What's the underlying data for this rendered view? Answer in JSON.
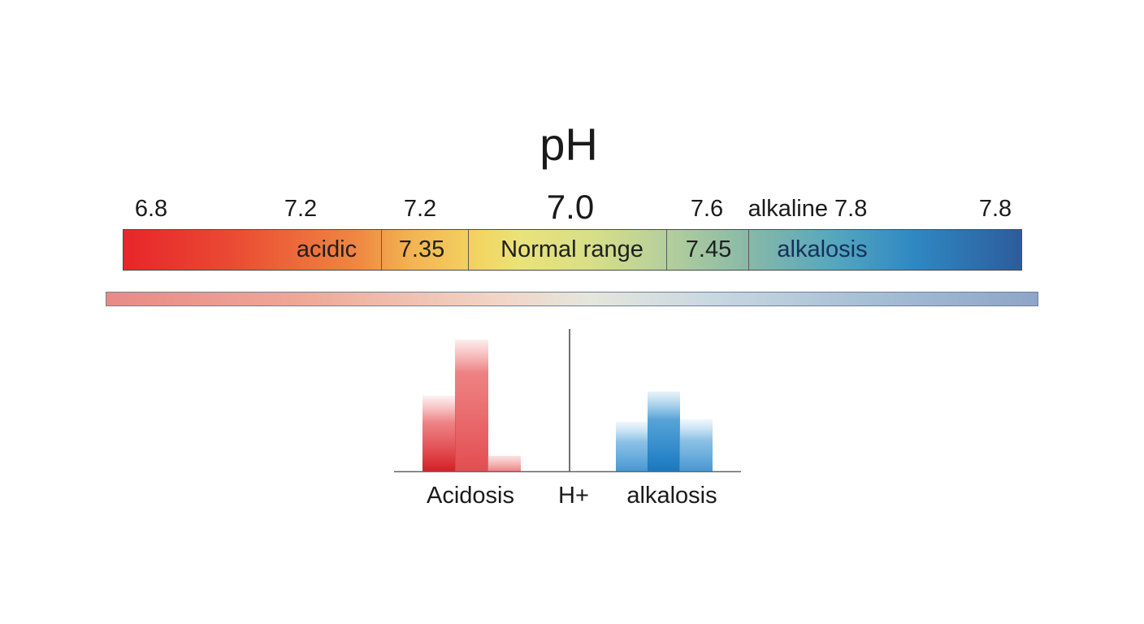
{
  "title": "pH",
  "scale": {
    "ticks": [
      "6.8",
      "7.2",
      "7.2",
      "7.0",
      "7.6",
      "alkaline 7.8",
      "7.8"
    ],
    "segments": [
      "acidic",
      "7.35",
      "Normal range",
      "7.45",
      "alkalosis"
    ]
  },
  "histogram": {
    "labels": [
      "Acidosis",
      "H+",
      "alkalosis"
    ],
    "acid_color": "#d9262c",
    "alkaline_color": "#2a7fc1"
  },
  "colors": {
    "acidic": "#e7252a",
    "normal": "#eae27a",
    "alkaline": "#2d5c9b"
  }
}
